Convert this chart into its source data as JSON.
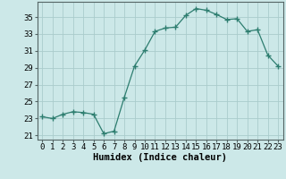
{
  "x": [
    0,
    1,
    2,
    3,
    4,
    5,
    6,
    7,
    8,
    9,
    10,
    11,
    12,
    13,
    14,
    15,
    16,
    17,
    18,
    19,
    20,
    21,
    22,
    23
  ],
  "y": [
    23.2,
    23.0,
    23.5,
    23.8,
    23.7,
    23.5,
    21.2,
    21.5,
    25.5,
    29.2,
    31.1,
    33.3,
    33.7,
    33.8,
    35.2,
    36.0,
    35.8,
    35.3,
    34.7,
    34.8,
    33.3,
    33.5,
    30.5,
    29.2
  ],
  "line_color": "#2d7d6f",
  "marker": "+",
  "marker_size": 4,
  "bg_color": "#cce8e8",
  "grid_color": "#aacccc",
  "xlabel": "Humidex (Indice chaleur)",
  "ylabel": "",
  "yticks": [
    21,
    23,
    25,
    27,
    29,
    31,
    33,
    35
  ],
  "xticks": [
    0,
    1,
    2,
    3,
    4,
    5,
    6,
    7,
    8,
    9,
    10,
    11,
    12,
    13,
    14,
    15,
    16,
    17,
    18,
    19,
    20,
    21,
    22,
    23
  ],
  "ylim": [
    20.5,
    36.8
  ],
  "xlim": [
    -0.5,
    23.5
  ],
  "xlabel_fontsize": 7.5,
  "tick_fontsize": 6.5
}
